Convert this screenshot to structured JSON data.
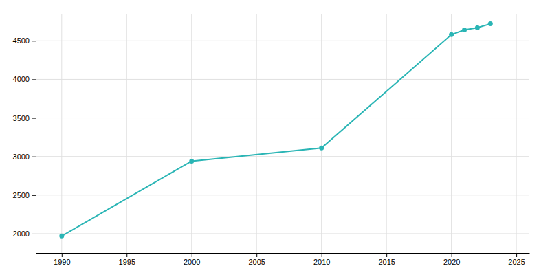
{
  "chart_data": {
    "type": "line",
    "x": [
      1990,
      2000,
      2010,
      2020,
      2021,
      2022,
      2023
    ],
    "values": [
      1970,
      2940,
      3110,
      4580,
      4640,
      4670,
      4720
    ],
    "color": "#2ab5b5",
    "marker": "circle",
    "xlim": [
      1988,
      2026
    ],
    "ylim": [
      1750,
      4850
    ],
    "xticks": [
      1990,
      1995,
      2000,
      2005,
      2010,
      2015,
      2020,
      2025
    ],
    "yticks": [
      2000,
      2500,
      3000,
      3500,
      4000,
      4500
    ],
    "grid": true
  }
}
